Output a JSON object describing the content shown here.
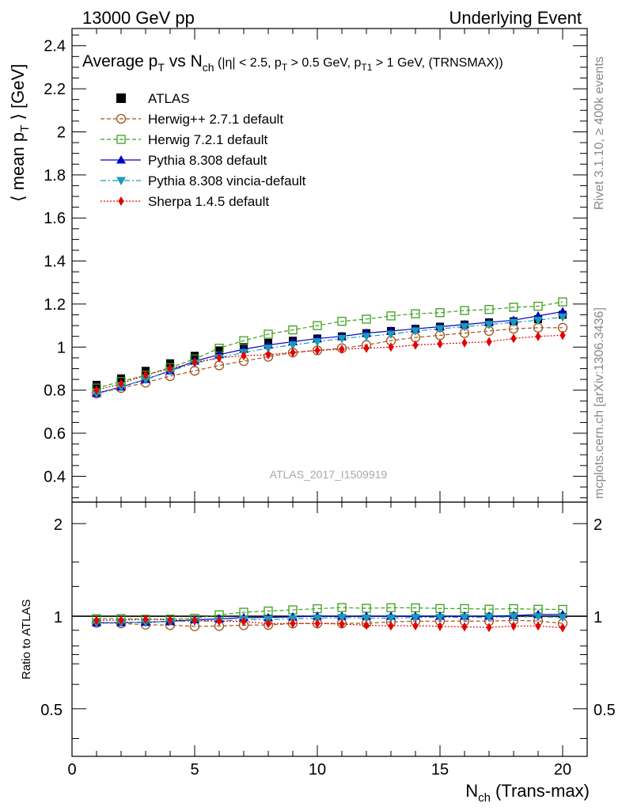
{
  "header": {
    "left": "13000 GeV pp",
    "right": "Underlying Event"
  },
  "side_labels": {
    "rivet": "Rivet 3.1.10, ≥ 400k events",
    "mcplots": "mcplots.cern.ch [arXiv:1306.3436]"
  },
  "watermark": "ATLAS_2017_I1509919",
  "chart_data": {
    "type": "line",
    "title": {
      "main": "Average p",
      "main_sub": "T",
      "vs": " vs N",
      "vs_sub": "ch",
      "cuts_1": " (|η| < 2.5, p",
      "cuts_1_sub": "T",
      "cuts_2": " > 0.5 GeV, p",
      "cuts_2_sub": "T1",
      "cuts_3": " > 1 GeV, (TRNSMAX))"
    },
    "ylabel": {
      "pre": "⟨ mean p",
      "sub": "T",
      "post": " ⟩ [GeV]"
    },
    "ratio_ylabel": "Ratio to ATLAS",
    "xlabel": {
      "pre": "N",
      "sub": "ch",
      "post": " (Trans-max)"
    },
    "xlim": [
      0,
      21
    ],
    "ylim": [
      0.28,
      2.48
    ],
    "ratio_ylim": [
      0.35,
      2.35
    ],
    "ratio_log": true,
    "x_ticks": [
      0,
      5,
      10,
      15,
      20
    ],
    "x_tick_labels": [
      "0",
      "5",
      "10",
      "15",
      "20"
    ],
    "y_ticks": [
      0.4,
      0.6,
      0.8,
      1.0,
      1.2,
      1.4,
      1.6,
      1.8,
      2.0,
      2.2,
      2.4
    ],
    "y_tick_labels": [
      "0.4",
      "0.6",
      "0.8",
      "1",
      "1.2",
      "1.4",
      "1.6",
      "1.8",
      "2",
      "2.2",
      "2.4"
    ],
    "ratio_ticks": [
      0.5,
      1,
      2
    ],
    "ratio_tick_labels": [
      "0.5",
      "1",
      "2"
    ],
    "x": [
      1,
      2,
      3,
      4,
      5,
      6,
      7,
      8,
      9,
      10,
      11,
      12,
      13,
      14,
      15,
      16,
      17,
      18,
      19,
      20
    ],
    "data": {
      "name": "ATLAS",
      "values": [
        0.825,
        0.855,
        0.89,
        0.925,
        0.96,
        0.985,
        1.0,
        1.02,
        1.03,
        1.04,
        1.05,
        1.065,
        1.075,
        1.085,
        1.095,
        1.105,
        1.115,
        1.12,
        1.13,
        1.15
      ]
    },
    "series": [
      {
        "name": "Herwig++ 2.7.1 default",
        "color": "#a0521b",
        "marker": "open-circle",
        "dash": "5,3",
        "values": [
          0.785,
          0.81,
          0.835,
          0.865,
          0.89,
          0.915,
          0.935,
          0.955,
          0.975,
          0.985,
          0.995,
          1.01,
          1.03,
          1.045,
          1.055,
          1.065,
          1.075,
          1.085,
          1.09,
          1.09
        ]
      },
      {
        "name": "Herwig 7.2.1 default",
        "color": "#3b9e1e",
        "marker": "open-square",
        "dash": "5,3",
        "values": [
          0.81,
          0.84,
          0.87,
          0.905,
          0.945,
          0.995,
          1.03,
          1.06,
          1.08,
          1.1,
          1.12,
          1.13,
          1.145,
          1.155,
          1.16,
          1.17,
          1.175,
          1.185,
          1.19,
          1.21
        ]
      },
      {
        "name": "Pythia 8.308 default",
        "color": "#0000cc",
        "marker": "filled-triangle-up",
        "dash": "",
        "values": [
          0.785,
          0.815,
          0.85,
          0.89,
          0.935,
          0.965,
          0.99,
          1.01,
          1.025,
          1.04,
          1.05,
          1.065,
          1.075,
          1.085,
          1.095,
          1.105,
          1.115,
          1.125,
          1.145,
          1.165
        ]
      },
      {
        "name": "Pythia 8.308 vincia-default",
        "color": "#1a9bb5",
        "marker": "filled-triangle-down",
        "dash": "7,3,2,3",
        "values": [
          0.785,
          0.815,
          0.85,
          0.89,
          0.925,
          0.95,
          0.975,
          0.995,
          1.01,
          1.025,
          1.04,
          1.05,
          1.06,
          1.075,
          1.085,
          1.095,
          1.105,
          1.115,
          1.125,
          1.14
        ]
      },
      {
        "name": "Sherpa 1.4.5 default",
        "color": "#e60000",
        "marker": "filled-diamond",
        "dash": "2,2",
        "values": [
          0.8,
          0.83,
          0.87,
          0.9,
          0.93,
          0.95,
          0.96,
          0.965,
          0.975,
          0.985,
          0.99,
          0.995,
          1.0,
          1.01,
          1.015,
          1.02,
          1.025,
          1.04,
          1.05,
          1.055
        ]
      }
    ]
  }
}
